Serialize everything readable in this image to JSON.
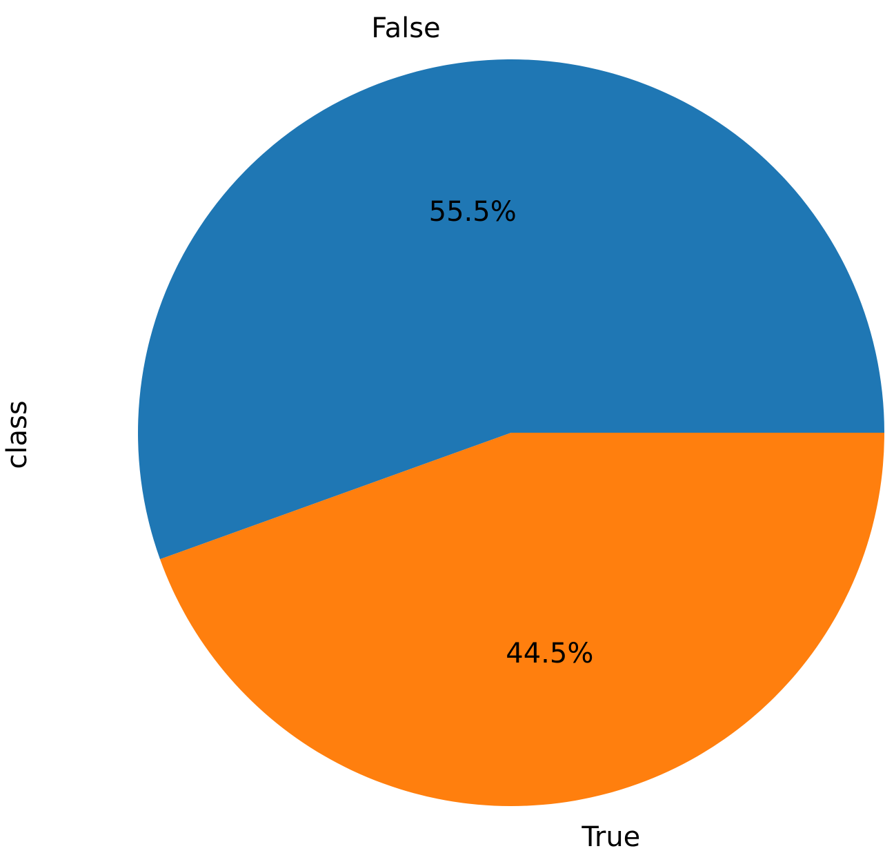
{
  "chart_data": {
    "type": "pie",
    "categories": [
      "False",
      "True"
    ],
    "values": [
      55.5,
      44.5
    ],
    "percent_labels": [
      "55.5%",
      "44.5%"
    ],
    "colors": [
      "#1f77b4",
      "#ff7f0e"
    ],
    "ylabel": "class",
    "title": "",
    "start_angle": 0,
    "direction": "counterclockwise",
    "legend": "none"
  }
}
